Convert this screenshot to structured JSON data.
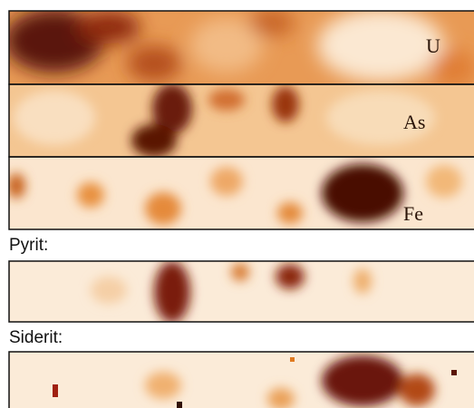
{
  "panels": [
    {
      "label": "U"
    },
    {
      "label": "As"
    },
    {
      "label": "Fe"
    }
  ],
  "sections": [
    {
      "title": "Pyrit:"
    },
    {
      "title": "Siderit:"
    }
  ]
}
